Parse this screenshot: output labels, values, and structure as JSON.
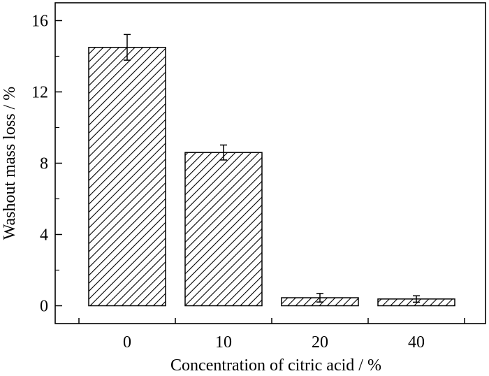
{
  "chart_data": {
    "type": "bar",
    "categories": [
      "0",
      "10",
      "20",
      "40"
    ],
    "values": [
      14.5,
      8.6,
      0.45,
      0.38
    ],
    "errors": [
      0.72,
      0.42,
      0.24,
      0.18
    ],
    "title": "",
    "xlabel": "Concentration of citric acid / %",
    "ylabel": "Washout mass loss / %",
    "ylim": [
      -1,
      17
    ],
    "yticks": [
      0,
      4,
      8,
      12,
      16
    ],
    "ytick_labels": [
      "0",
      "4",
      "8",
      "12",
      "16"
    ],
    "bar_fill": "hatched (diagonal lines)",
    "grid": false,
    "legend": "none"
  },
  "colors": {
    "bar_stroke": "#000000",
    "hatch": "#000000",
    "background": "#ffffff"
  }
}
